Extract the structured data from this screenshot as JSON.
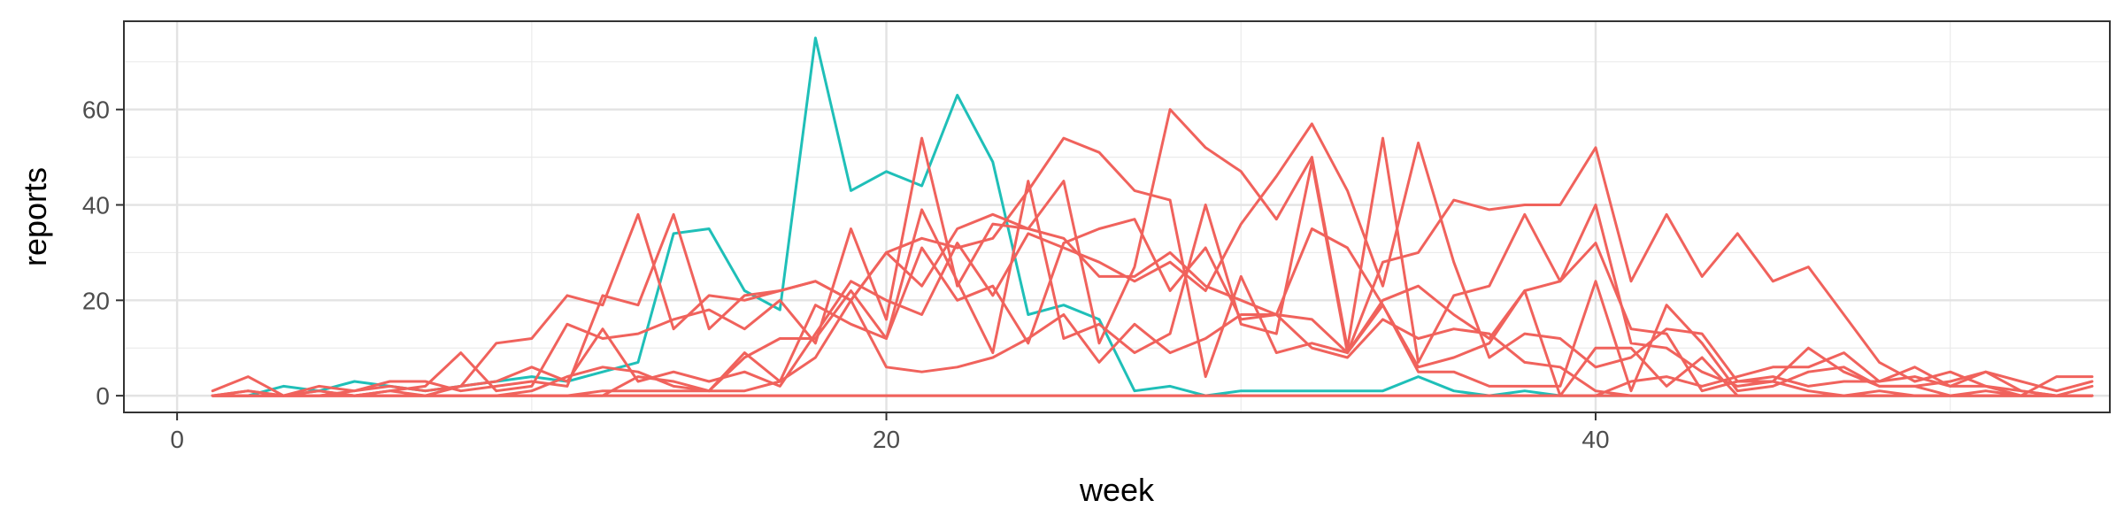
{
  "chart_data": {
    "type": "line",
    "title": "",
    "xlabel": "week",
    "ylabel": "reports",
    "xlim": [
      -1.5,
      54.5
    ],
    "ylim": [
      -3.5,
      78.5
    ],
    "x_ticks": [
      0,
      20,
      40
    ],
    "x_minor_ticks": [
      10,
      30,
      50
    ],
    "y_ticks": [
      0,
      20,
      40,
      60
    ],
    "y_minor_ticks": [
      10,
      30,
      50,
      70
    ],
    "grid": true,
    "legend": "none",
    "colors": {
      "teal": "#1fbfb8",
      "red": "#f0625c"
    },
    "series": [
      {
        "color": "#1fbfb8",
        "x": [
          1,
          2,
          3,
          4,
          5,
          6,
          7,
          8,
          9,
          10,
          11,
          12,
          13,
          14,
          15,
          16,
          17,
          18,
          19,
          20,
          21,
          22,
          23,
          24,
          25,
          26,
          27,
          28,
          29,
          30,
          31,
          32,
          33,
          34,
          35,
          36,
          37,
          38,
          39,
          40,
          41,
          42,
          43,
          44,
          45,
          46,
          47,
          48,
          49,
          50,
          51,
          52,
          53,
          54
        ],
        "values": [
          0,
          0,
          2,
          1,
          3,
          2,
          1,
          2,
          3,
          4,
          3,
          5,
          7,
          34,
          35,
          22,
          18,
          75,
          43,
          47,
          44,
          63,
          49,
          17,
          19,
          16,
          1,
          2,
          0,
          1,
          1,
          1,
          1,
          1,
          4,
          1,
          0,
          1,
          0,
          0,
          0,
          0,
          0,
          0,
          0,
          0,
          0,
          0,
          0,
          0,
          0,
          0,
          0,
          0
        ]
      },
      {
        "color": "#f0625c",
        "x": [
          1,
          2,
          3,
          4,
          5,
          6,
          7,
          8,
          9,
          10,
          11,
          12,
          13,
          14,
          15,
          16,
          17,
          18,
          19,
          20,
          21,
          22,
          23,
          24,
          25,
          26,
          27,
          28,
          29,
          30,
          31,
          32,
          33,
          34,
          35,
          36,
          37,
          38,
          39,
          40,
          41,
          42,
          43,
          44,
          45,
          46,
          47,
          48,
          49,
          50,
          51,
          52,
          53,
          54
        ],
        "values": [
          0,
          0,
          0,
          0,
          0,
          0,
          0,
          0,
          0,
          0,
          0,
          0,
          0,
          0,
          0,
          0,
          0,
          0,
          0,
          0,
          0,
          0,
          0,
          0,
          0,
          0,
          0,
          0,
          0,
          0,
          0,
          0,
          0,
          0,
          0,
          0,
          0,
          0,
          0,
          0,
          0,
          0,
          0,
          0,
          0,
          0,
          0,
          0,
          0,
          0,
          0,
          0,
          0,
          0
        ]
      },
      {
        "color": "#f0625c",
        "x": [
          1,
          2,
          3,
          4,
          5,
          6,
          7,
          8,
          9,
          10,
          11,
          12,
          13,
          14,
          15,
          16,
          17,
          18,
          19,
          20,
          21,
          22,
          23,
          24,
          25,
          26,
          27,
          28,
          29,
          30,
          31,
          32,
          33,
          34,
          35,
          36,
          37,
          38,
          39,
          40,
          41,
          42,
          43,
          44,
          45,
          46,
          47,
          48,
          49,
          50,
          51,
          52,
          53,
          54
        ],
        "values": [
          1,
          4,
          0,
          2,
          1,
          3,
          3,
          1,
          2,
          3,
          2,
          21,
          19,
          38,
          14,
          21,
          22,
          24,
          20,
          30,
          23,
          35,
          38,
          35,
          33,
          25,
          25,
          30,
          23,
          20,
          17,
          16,
          9,
          28,
          30,
          41,
          39,
          40,
          40,
          52,
          24,
          38,
          25,
          34,
          24,
          27,
          17,
          7,
          3,
          5,
          2,
          0,
          4,
          4
        ]
      },
      {
        "color": "#f0625c",
        "x": [
          1,
          2,
          3,
          4,
          5,
          6,
          7,
          8,
          9,
          10,
          11,
          12,
          13,
          14,
          15,
          16,
          17,
          18,
          19,
          20,
          21,
          22,
          23,
          24,
          25,
          26,
          27,
          28,
          29,
          30,
          31,
          32,
          33,
          34,
          35,
          36,
          37,
          38,
          39,
          40,
          41,
          42,
          43,
          44,
          45,
          46,
          47,
          48,
          49,
          50,
          51,
          52,
          53,
          54
        ],
        "values": [
          0,
          1,
          0,
          1,
          0,
          1,
          2,
          9,
          1,
          2,
          15,
          12,
          13,
          16,
          18,
          14,
          20,
          11,
          35,
          16,
          54,
          23,
          36,
          35,
          45,
          11,
          27,
          60,
          52,
          47,
          37,
          50,
          10,
          54,
          7,
          21,
          23,
          38,
          24,
          40,
          11,
          10,
          5,
          2,
          3,
          1,
          0,
          1,
          0,
          0,
          1,
          0,
          0,
          0
        ]
      },
      {
        "color": "#f0625c",
        "x": [
          1,
          2,
          3,
          4,
          5,
          6,
          7,
          8,
          9,
          10,
          11,
          12,
          13,
          14,
          15,
          16,
          17,
          18,
          19,
          20,
          21,
          22,
          23,
          24,
          25,
          26,
          27,
          28,
          29,
          30,
          31,
          32,
          33,
          34,
          35,
          36,
          37,
          38,
          39,
          40,
          41,
          42,
          43,
          44,
          45,
          46,
          47,
          48,
          49,
          50,
          51,
          52,
          53,
          54
        ],
        "values": [
          0,
          0,
          0,
          0,
          1,
          2,
          1,
          2,
          3,
          6,
          3,
          14,
          3,
          5,
          3,
          5,
          2,
          13,
          24,
          20,
          17,
          32,
          21,
          34,
          31,
          28,
          24,
          28,
          22,
          36,
          46,
          57,
          43,
          23,
          53,
          28,
          8,
          13,
          12,
          6,
          8,
          14,
          13,
          3,
          3,
          10,
          5,
          2,
          2,
          3,
          5,
          1,
          0,
          0
        ]
      },
      {
        "color": "#f0625c",
        "x": [
          1,
          2,
          3,
          4,
          5,
          6,
          7,
          8,
          9,
          10,
          11,
          12,
          13,
          14,
          15,
          16,
          17,
          18,
          19,
          20,
          21,
          22,
          23,
          24,
          25,
          26,
          27,
          28,
          29,
          30,
          31,
          32,
          33,
          34,
          35,
          36,
          37,
          38,
          39,
          40,
          41,
          42,
          43,
          44,
          45,
          46,
          47,
          48,
          49,
          50,
          51,
          52,
          53,
          54
        ],
        "values": [
          0,
          1,
          0,
          1,
          0,
          1,
          0,
          2,
          11,
          12,
          21,
          19,
          38,
          14,
          21,
          20,
          22,
          24,
          20,
          30,
          33,
          31,
          33,
          43,
          54,
          51,
          43,
          41,
          4,
          25,
          9,
          11,
          9,
          20,
          23,
          17,
          12,
          22,
          24,
          32,
          14,
          13,
          1,
          3,
          4,
          2,
          3,
          3,
          6,
          2,
          2,
          1,
          0,
          2
        ]
      },
      {
        "color": "#f0625c",
        "x": [
          1,
          2,
          3,
          4,
          5,
          6,
          7,
          8,
          9,
          10,
          11,
          12,
          13,
          14,
          15,
          16,
          17,
          18,
          19,
          20,
          21,
          22,
          23,
          24,
          25,
          26,
          27,
          28,
          29,
          30,
          31,
          32,
          33,
          34,
          35,
          36,
          37,
          38,
          39,
          40,
          41,
          42,
          43,
          44,
          45,
          46,
          47,
          48,
          49,
          50,
          51,
          52,
          53,
          54
        ],
        "values": [
          0,
          0,
          0,
          0,
          0,
          0,
          0,
          0,
          0,
          0,
          0,
          0,
          4,
          3,
          1,
          8,
          12,
          12,
          22,
          12,
          39,
          24,
          9,
          45,
          12,
          15,
          9,
          13,
          40,
          15,
          13,
          49,
          9,
          19,
          5,
          5,
          2,
          2,
          2,
          24,
          1,
          19,
          11,
          1,
          2,
          5,
          6,
          2,
          2,
          0,
          0,
          0,
          0,
          0
        ]
      },
      {
        "color": "#f0625c",
        "x": [
          1,
          2,
          3,
          4,
          5,
          6,
          7,
          8,
          9,
          10,
          11,
          12,
          13,
          14,
          15,
          16,
          17,
          18,
          19,
          20,
          21,
          22,
          23,
          24,
          25,
          26,
          27,
          28,
          29,
          30,
          31,
          32,
          33,
          34,
          35,
          36,
          37,
          38,
          39,
          40,
          41,
          42,
          43,
          44,
          45,
          46,
          47,
          48,
          49,
          50,
          51,
          52,
          53,
          54
        ],
        "values": [
          0,
          0,
          0,
          0,
          0,
          0,
          0,
          0,
          0,
          0,
          0,
          1,
          1,
          1,
          1,
          1,
          3,
          8,
          20,
          6,
          5,
          6,
          8,
          12,
          17,
          7,
          15,
          9,
          12,
          17,
          17,
          10,
          8,
          16,
          12,
          14,
          13,
          7,
          6,
          1,
          0,
          0,
          0,
          0,
          0,
          0,
          0,
          0,
          0,
          0,
          0,
          0,
          0,
          0
        ]
      },
      {
        "color": "#f0625c",
        "x": [
          1,
          2,
          3,
          4,
          5,
          6,
          7,
          8,
          9,
          10,
          11,
          12,
          13,
          14,
          15,
          16,
          17,
          18,
          19,
          20,
          21,
          22,
          23,
          24,
          25,
          26,
          27,
          28,
          29,
          30,
          31,
          32,
          33,
          34,
          35,
          36,
          37,
          38,
          39,
          40,
          41,
          42,
          43,
          44,
          45,
          46,
          47,
          48,
          49,
          50,
          51,
          52,
          53,
          54
        ],
        "values": [
          0,
          0,
          0,
          0,
          0,
          0,
          0,
          0,
          0,
          1,
          4,
          6,
          5,
          2,
          1,
          9,
          3,
          19,
          15,
          12,
          31,
          20,
          23,
          11,
          32,
          35,
          37,
          22,
          31,
          16,
          17,
          35,
          31,
          19,
          6,
          8,
          11,
          22,
          0,
          10,
          10,
          2,
          8,
          0,
          0,
          0,
          0,
          0,
          0,
          0,
          0,
          0,
          0,
          0
        ]
      },
      {
        "color": "#f0625c",
        "x": [
          1,
          2,
          3,
          4,
          5,
          6,
          7,
          8,
          9,
          10,
          11,
          12,
          13,
          14,
          15,
          16,
          17,
          18,
          19,
          20,
          21,
          22,
          23,
          24,
          25,
          26,
          27,
          28,
          29,
          30,
          31,
          32,
          33,
          34,
          35,
          36,
          37,
          38,
          39,
          40,
          41,
          42,
          43,
          44,
          45,
          46,
          47,
          48,
          49,
          50,
          51,
          52,
          53,
          54
        ],
        "values": [
          0,
          0,
          0,
          0,
          0,
          0,
          0,
          0,
          0,
          0,
          0,
          0,
          0,
          0,
          0,
          0,
          0,
          0,
          0,
          0,
          0,
          0,
          0,
          0,
          0,
          0,
          0,
          0,
          0,
          0,
          0,
          0,
          0,
          0,
          0,
          0,
          0,
          0,
          0,
          0,
          3,
          4,
          2,
          4,
          6,
          6,
          9,
          3,
          4,
          2,
          5,
          3,
          1,
          3
        ]
      }
    ]
  }
}
